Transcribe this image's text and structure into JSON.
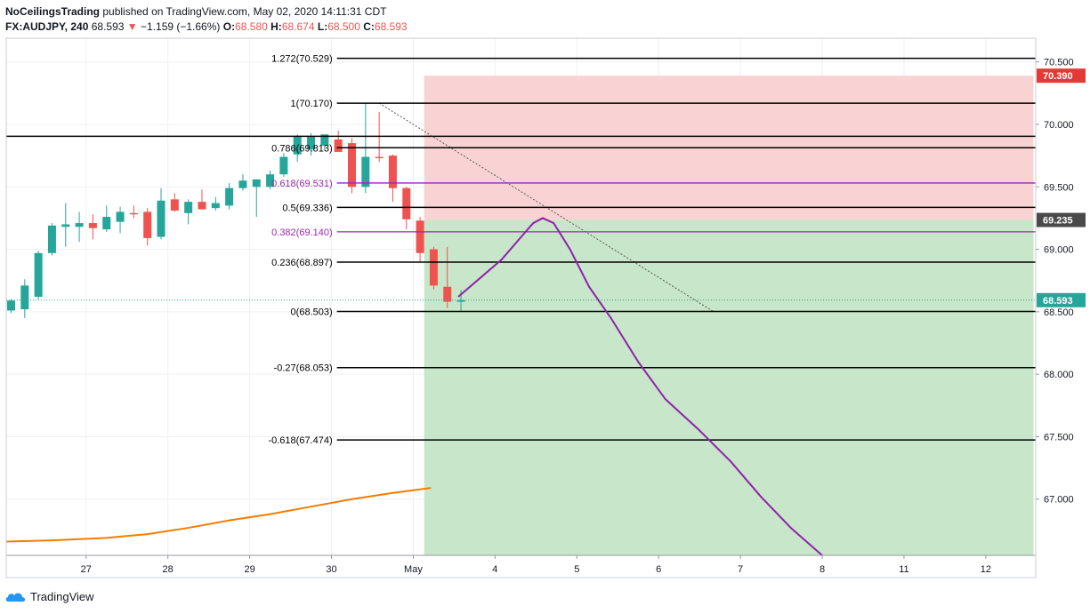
{
  "header": {
    "author": "NoCeilingsTrading",
    "published_text": "published on TradingView.com, May 02, 2020 14:11:31 CDT",
    "symbol": "FX:AUDJPY, 240",
    "last": "68.593",
    "change_arrow": "▼",
    "change": "−1.159 (−1.66%)",
    "o_label": "O:",
    "o_value": "68.580",
    "h_label": "H:",
    "h_value": "68.674",
    "l_label": "L:",
    "l_value": "68.500",
    "c_label": "C:",
    "c_value": "68.593"
  },
  "footer": {
    "brand": "TradingView"
  },
  "colors": {
    "up": "#26a69a",
    "down": "#ef5350",
    "fib": "#000000",
    "fib_highlight": "#9c27b0",
    "projection": "#8e24aa",
    "moving_average": "#f57c00",
    "loss_zone": "#f9d3d3",
    "profit_zone": "#c8e6c9",
    "stop_badge": "#e53935",
    "entry_badge": "#4a4a4a",
    "last_badge": "#26a69a"
  },
  "chart_data": {
    "type": "candlestick",
    "symbol": "FX:AUDJPY",
    "interval": "240",
    "ylim": [
      66.55,
      70.69
    ],
    "y_ticks": [
      "70.500",
      "70.000",
      "69.500",
      "69.000",
      "68.500",
      "68.000",
      "67.500",
      "67.000"
    ],
    "x_ticks": [
      {
        "label": "27",
        "t": 5.5
      },
      {
        "label": "28",
        "t": 11.5
      },
      {
        "label": "29",
        "t": 17.5
      },
      {
        "label": "30",
        "t": 23.5
      },
      {
        "label": "May",
        "t": 29.5
      },
      {
        "label": "4",
        "t": 35.5
      },
      {
        "label": "5",
        "t": 41.5
      },
      {
        "label": "6",
        "t": 47.5
      },
      {
        "label": "7",
        "t": 53.5
      },
      {
        "label": "8",
        "t": 59.5
      },
      {
        "label": "11",
        "t": 65.5
      },
      {
        "label": "12",
        "t": 71.5
      }
    ],
    "candles": [
      {
        "o": 68.51,
        "h": 68.6,
        "l": 68.49,
        "c": 68.59
      },
      {
        "o": 68.52,
        "h": 68.76,
        "l": 68.45,
        "c": 68.71
      },
      {
        "o": 68.62,
        "h": 68.99,
        "l": 68.6,
        "c": 68.97
      },
      {
        "o": 68.97,
        "h": 69.21,
        "l": 68.95,
        "c": 69.19
      },
      {
        "o": 69.18,
        "h": 69.37,
        "l": 69.02,
        "c": 69.2
      },
      {
        "o": 69.18,
        "h": 69.3,
        "l": 69.06,
        "c": 69.21
      },
      {
        "o": 69.21,
        "h": 69.28,
        "l": 69.08,
        "c": 69.17
      },
      {
        "o": 69.16,
        "h": 69.35,
        "l": 69.14,
        "c": 69.26
      },
      {
        "o": 69.22,
        "h": 69.34,
        "l": 69.13,
        "c": 69.3
      },
      {
        "o": 69.29,
        "h": 69.35,
        "l": 69.25,
        "c": 69.28
      },
      {
        "o": 69.3,
        "h": 69.33,
        "l": 69.03,
        "c": 69.09
      },
      {
        "o": 69.1,
        "h": 69.49,
        "l": 69.08,
        "c": 69.39
      },
      {
        "o": 69.4,
        "h": 69.45,
        "l": 69.3,
        "c": 69.31
      },
      {
        "o": 69.29,
        "h": 69.4,
        "l": 69.2,
        "c": 69.38
      },
      {
        "o": 69.38,
        "h": 69.48,
        "l": 69.32,
        "c": 69.32
      },
      {
        "o": 69.33,
        "h": 69.42,
        "l": 69.31,
        "c": 69.37
      },
      {
        "o": 69.35,
        "h": 69.53,
        "l": 69.32,
        "c": 69.49
      },
      {
        "o": 69.49,
        "h": 69.6,
        "l": 69.47,
        "c": 69.55
      },
      {
        "o": 69.5,
        "h": 69.56,
        "l": 69.26,
        "c": 69.56
      },
      {
        "o": 69.5,
        "h": 69.63,
        "l": 69.48,
        "c": 69.6
      },
      {
        "o": 69.6,
        "h": 69.77,
        "l": 69.58,
        "c": 69.74
      },
      {
        "o": 69.76,
        "h": 69.92,
        "l": 69.7,
        "c": 69.9
      },
      {
        "o": 69.8,
        "h": 69.93,
        "l": 69.75,
        "c": 69.9
      },
      {
        "o": 69.83,
        "h": 69.9,
        "l": 69.8,
        "c": 69.92
      },
      {
        "o": 69.88,
        "h": 69.95,
        "l": 69.8,
        "c": 69.78
      },
      {
        "o": 69.85,
        "h": 69.89,
        "l": 69.45,
        "c": 69.5
      },
      {
        "o": 69.5,
        "h": 70.17,
        "l": 69.45,
        "c": 69.74
      },
      {
        "o": 69.74,
        "h": 70.1,
        "l": 69.7,
        "c": 69.73
      },
      {
        "o": 69.75,
        "h": 69.76,
        "l": 69.38,
        "c": 69.49
      },
      {
        "o": 69.49,
        "h": 69.5,
        "l": 69.16,
        "c": 69.24
      },
      {
        "o": 69.23,
        "h": 69.26,
        "l": 68.9,
        "c": 68.97
      },
      {
        "o": 69.0,
        "h": 69.02,
        "l": 68.68,
        "c": 68.71
      },
      {
        "o": 68.7,
        "h": 69.02,
        "l": 68.53,
        "c": 68.58
      },
      {
        "o": 68.58,
        "h": 68.674,
        "l": 68.5,
        "c": 68.593
      }
    ],
    "fib_levels": [
      {
        "label": "1.272(70.529)",
        "value": 70.529,
        "highlight": false
      },
      {
        "label": "1(70.170)",
        "value": 70.17,
        "highlight": false
      },
      {
        "label": "0.786(69.813)",
        "value": 69.813,
        "highlight": false
      },
      {
        "label": "0.618(69.531)",
        "value": 69.531,
        "highlight": true
      },
      {
        "label": "0.5(69.336)",
        "value": 69.336,
        "highlight": false
      },
      {
        "label": "0.382(69.140)",
        "value": 69.14,
        "highlight": true
      },
      {
        "label": "0.236(68.897)",
        "value": 68.897,
        "highlight": false
      },
      {
        "label": "0(68.503)",
        "value": 68.503,
        "highlight": false
      },
      {
        "label": "-0.27(68.053)",
        "value": 68.053,
        "highlight": false
      },
      {
        "label": "-0.618(67.474)",
        "value": 67.474,
        "highlight": false
      }
    ],
    "horizontal_line": {
      "value": 69.905
    },
    "trend_line": {
      "from": {
        "t": 27.0,
        "v": 70.17
      },
      "to": {
        "t": 51.5,
        "v": 68.503
      }
    },
    "short_position": {
      "t_start": 30.3,
      "t_end": 75.0,
      "stop": 70.39,
      "entry": 69.235,
      "target": 66.55
    },
    "projection": [
      {
        "t": 32.8,
        "v": 68.62
      },
      {
        "t": 34.3,
        "v": 68.76
      },
      {
        "t": 36.0,
        "v": 68.92
      },
      {
        "t": 37.5,
        "v": 69.11
      },
      {
        "t": 38.3,
        "v": 69.21
      },
      {
        "t": 39.0,
        "v": 69.25
      },
      {
        "t": 39.8,
        "v": 69.21
      },
      {
        "t": 41.0,
        "v": 69.0
      },
      {
        "t": 42.4,
        "v": 68.7
      },
      {
        "t": 44.0,
        "v": 68.45
      },
      {
        "t": 46.0,
        "v": 68.1
      },
      {
        "t": 48.0,
        "v": 67.8
      },
      {
        "t": 50.5,
        "v": 67.55
      },
      {
        "t": 52.8,
        "v": 67.3
      },
      {
        "t": 55.0,
        "v": 67.02
      },
      {
        "t": 57.2,
        "v": 66.77
      },
      {
        "t": 59.5,
        "v": 66.55
      }
    ],
    "moving_average": [
      {
        "t": -0.5,
        "v": 66.66
      },
      {
        "t": 3,
        "v": 66.67
      },
      {
        "t": 7,
        "v": 66.69
      },
      {
        "t": 10,
        "v": 66.72
      },
      {
        "t": 13,
        "v": 66.77
      },
      {
        "t": 16,
        "v": 66.83
      },
      {
        "t": 19,
        "v": 66.88
      },
      {
        "t": 22,
        "v": 66.94
      },
      {
        "t": 25,
        "v": 67.0
      },
      {
        "t": 28,
        "v": 67.05
      },
      {
        "t": 30.8,
        "v": 67.09
      }
    ],
    "badges": [
      {
        "label": "70.390",
        "value": 70.39,
        "kind": "stop"
      },
      {
        "label": "69.235",
        "value": 69.235,
        "kind": "entry"
      },
      {
        "label": "68.593",
        "value": 68.593,
        "kind": "last"
      }
    ]
  }
}
